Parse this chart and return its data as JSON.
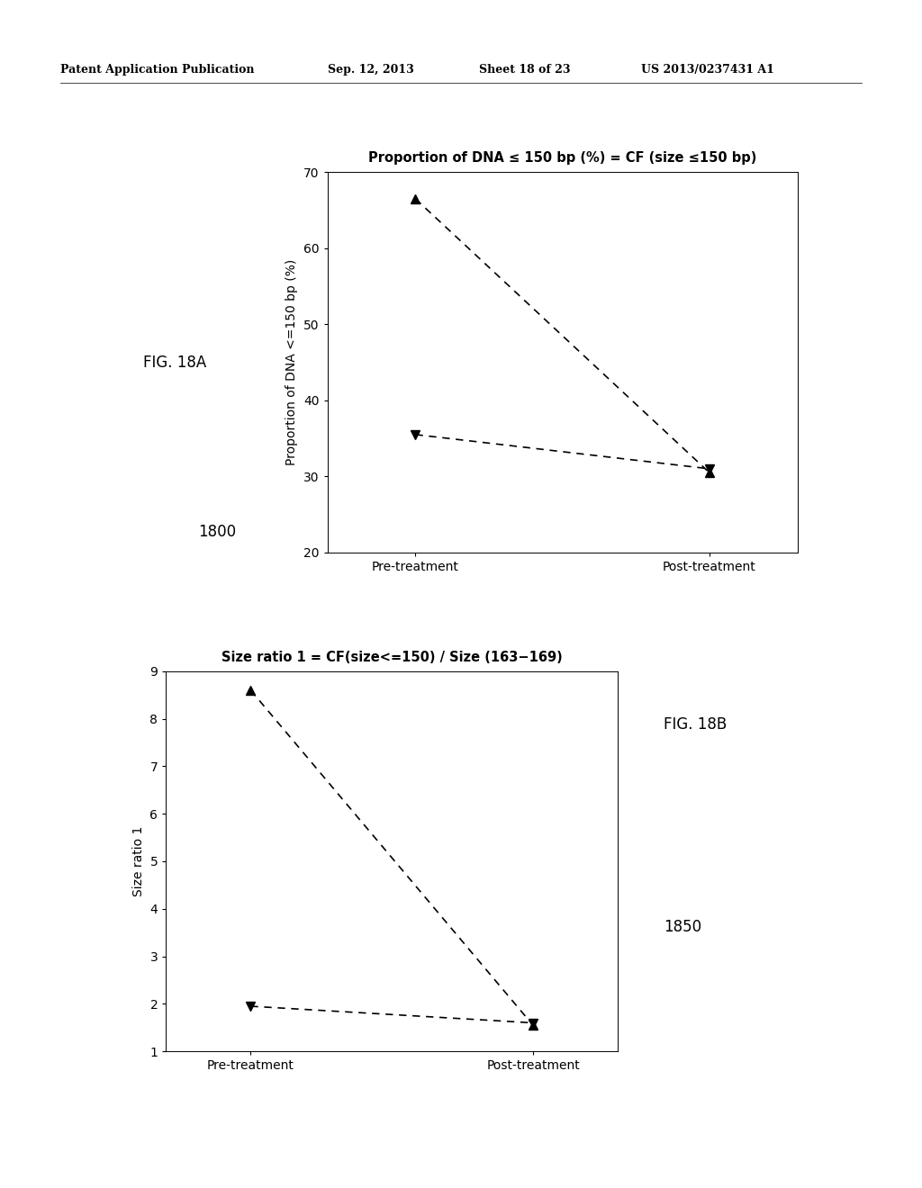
{
  "fig18a": {
    "title": "Proportion of DNA ≤ 150 bp (%) = CF (size ≤150 bp)",
    "ylabel": "Proportion of DNA <=150 bp (%)",
    "xlabel_pre": "Pre-treatment",
    "xlabel_post": "Post-treatment",
    "ylim": [
      20,
      70
    ],
    "yticks": [
      20,
      30,
      40,
      50,
      60,
      70
    ],
    "line1": {
      "pre": 66.5,
      "post": 30.5,
      "marker": "^"
    },
    "line2": {
      "pre": 35.5,
      "post": 31.0,
      "marker": "v"
    },
    "fig_label": "FIG. 18A",
    "fig_number": "1800"
  },
  "fig18b": {
    "title": "Size ratio 1 = CF(size<=150) / Size (163−169)",
    "ylabel": "Size ratio 1",
    "xlabel_pre": "Pre-treatment",
    "xlabel_post": "Post-treatment",
    "ylim": [
      1,
      9
    ],
    "yticks": [
      1,
      2,
      3,
      4,
      5,
      6,
      7,
      8,
      9
    ],
    "line1": {
      "pre": 8.6,
      "post": 1.55,
      "marker": "^"
    },
    "line2": {
      "pre": 1.95,
      "post": 1.6,
      "marker": "v"
    },
    "fig_label": "FIG. 18B",
    "fig_number": "1850"
  },
  "line_color": "#000000",
  "marker_color": "#000000",
  "title_fontsize": 10.5,
  "label_fontsize": 10,
  "tick_fontsize": 10,
  "fig_label_fontsize": 12,
  "number_fontsize": 12,
  "background_color": "#ffffff",
  "header_text": "Patent Application Publication",
  "header_date": "Sep. 12, 2013",
  "header_sheet": "Sheet 18 of 23",
  "header_patent": "US 2013/0237431 A1"
}
